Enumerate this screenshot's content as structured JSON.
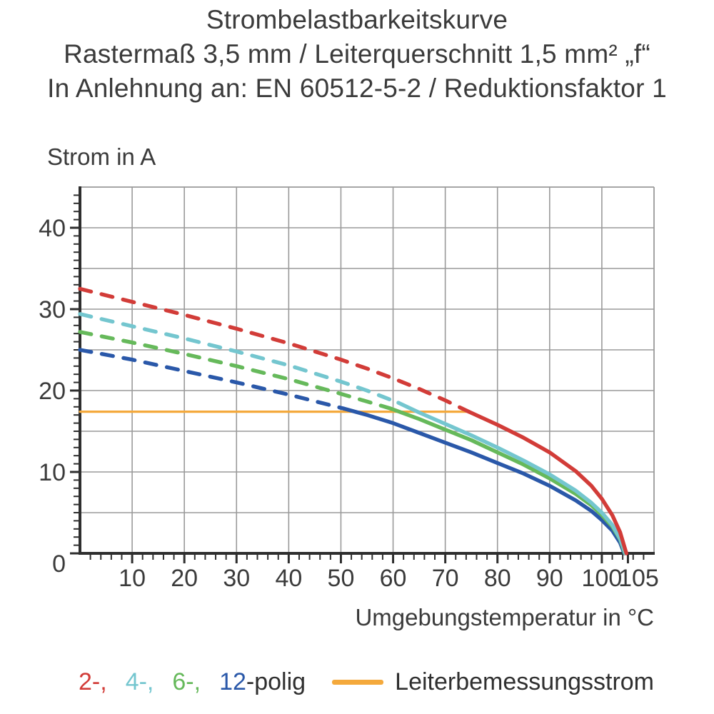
{
  "title": {
    "line1": "Strombelastbarkeitskurve",
    "line2": "Rastermaß 3,5 mm / Leiterquerschnitt 1,5 mm² „f“",
    "line3": "In Anlehnung an: EN 60512-5-2 / Reduktionsfaktor 1"
  },
  "chart_data": {
    "type": "line",
    "title": "Strombelastbarkeitskurve",
    "xlabel": "Umgebungstemperatur in °C",
    "ylabel": "Strom in A",
    "xlim": [
      0,
      110
    ],
    "ylim": [
      0,
      45
    ],
    "x_label_ticks": [
      10,
      20,
      30,
      40,
      50,
      60,
      70,
      80,
      90,
      100,
      105
    ],
    "y_label_ticks": [
      0,
      10,
      20,
      30,
      40
    ],
    "x_grid_step": 10,
    "y_grid_step": 5,
    "x_minor_tick_step": 2,
    "y_minor_tick_step": 1,
    "grid": true,
    "grid_color": "#9a9a9a",
    "axis_color": "#2e2e2e",
    "series": [
      {
        "name": "2-polig",
        "color": "#d23c38",
        "width": 5.4,
        "dash_until_x": 74.5,
        "points": [
          [
            0,
            32.5
          ],
          [
            10,
            30.9
          ],
          [
            20,
            29.3
          ],
          [
            30,
            27.6
          ],
          [
            40,
            25.8
          ],
          [
            50,
            23.8
          ],
          [
            55,
            22.7
          ],
          [
            60,
            21.5
          ],
          [
            65,
            20.2
          ],
          [
            70,
            18.8
          ],
          [
            74.5,
            17.4
          ],
          [
            80,
            15.8
          ],
          [
            85,
            14.2
          ],
          [
            90,
            12.4
          ],
          [
            95,
            10.1
          ],
          [
            98,
            8.3
          ],
          [
            100,
            6.7
          ],
          [
            102,
            4.7
          ],
          [
            103.5,
            2.6
          ],
          [
            104.7,
            0
          ]
        ]
      },
      {
        "name": "4-polig",
        "color": "#74c6cf",
        "width": 5.4,
        "dash_until_x": 61,
        "points": [
          [
            0,
            29.4
          ],
          [
            10,
            27.9
          ],
          [
            20,
            26.4
          ],
          [
            30,
            24.8
          ],
          [
            40,
            23.1
          ],
          [
            50,
            21.1
          ],
          [
            55,
            20.0
          ],
          [
            61,
            18.5
          ],
          [
            65,
            17.3
          ],
          [
            70,
            15.9
          ],
          [
            75,
            14.5
          ],
          [
            80,
            13.0
          ],
          [
            85,
            11.4
          ],
          [
            90,
            9.7
          ],
          [
            95,
            7.7
          ],
          [
            98,
            6.2
          ],
          [
            100,
            5.0
          ],
          [
            102,
            3.5
          ],
          [
            103.5,
            1.8
          ],
          [
            104.5,
            0
          ]
        ]
      },
      {
        "name": "6-polig",
        "color": "#66b95b",
        "width": 5.4,
        "dash_until_x": 59.5,
        "points": [
          [
            0,
            27.2
          ],
          [
            10,
            25.9
          ],
          [
            20,
            24.5
          ],
          [
            30,
            23.0
          ],
          [
            40,
            21.4
          ],
          [
            50,
            19.6
          ],
          [
            59.5,
            17.8
          ],
          [
            65,
            16.5
          ],
          [
            70,
            15.2
          ],
          [
            75,
            13.9
          ],
          [
            80,
            12.4
          ],
          [
            85,
            10.9
          ],
          [
            90,
            9.2
          ],
          [
            95,
            7.3
          ],
          [
            98,
            5.9
          ],
          [
            100,
            4.7
          ],
          [
            102,
            3.3
          ],
          [
            103.5,
            1.7
          ],
          [
            104.4,
            0
          ]
        ]
      },
      {
        "name": "12-polig",
        "color": "#2a58a9",
        "width": 5.4,
        "dash_until_x": 50.5,
        "points": [
          [
            0,
            25.0
          ],
          [
            10,
            23.8
          ],
          [
            20,
            22.4
          ],
          [
            30,
            21.0
          ],
          [
            40,
            19.5
          ],
          [
            50.5,
            17.8
          ],
          [
            55,
            17.0
          ],
          [
            60,
            16.0
          ],
          [
            65,
            14.8
          ],
          [
            70,
            13.6
          ],
          [
            75,
            12.4
          ],
          [
            80,
            11.1
          ],
          [
            85,
            9.8
          ],
          [
            90,
            8.3
          ],
          [
            95,
            6.5
          ],
          [
            98,
            5.2
          ],
          [
            100,
            4.1
          ],
          [
            102,
            2.8
          ],
          [
            103.5,
            1.3
          ],
          [
            104.3,
            0
          ]
        ]
      },
      {
        "name": "Leiterbemessungsstrom",
        "color": "#f4a93c",
        "width": 3.2,
        "dash_until_x": null,
        "points": [
          [
            0,
            17.4
          ],
          [
            74.5,
            17.4
          ]
        ]
      }
    ]
  },
  "legend": {
    "poles": [
      {
        "label": "2-,",
        "color": "#d23c38"
      },
      {
        "label": "4-,",
        "color": "#74c6cf"
      },
      {
        "label": "6-,",
        "color": "#66b95b"
      },
      {
        "label": "12",
        "color": "#2a58a9"
      }
    ],
    "poles_suffix": "-polig",
    "rated": {
      "label": "Leiterbemessungsstrom",
      "color": "#f4a93c"
    }
  }
}
